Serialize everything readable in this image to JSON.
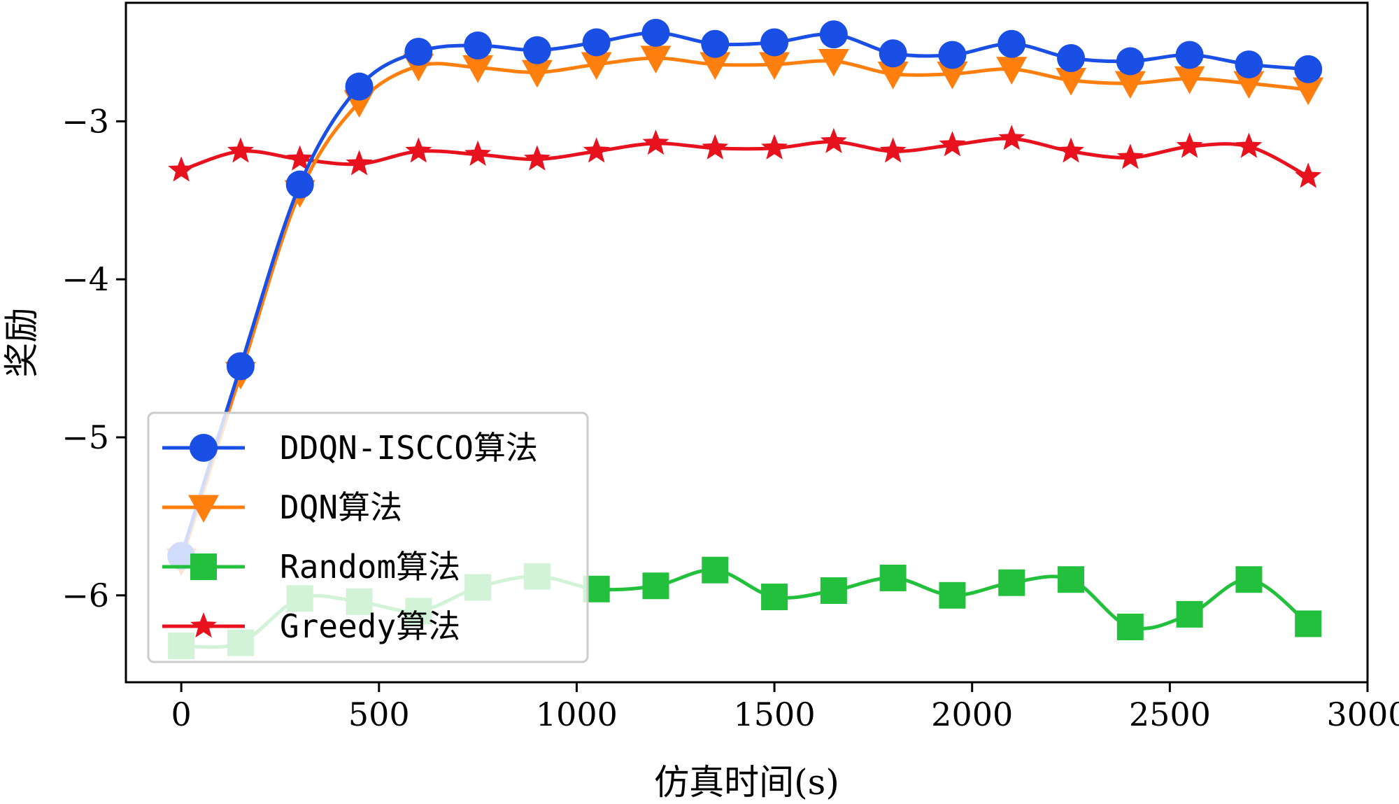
{
  "chart_data": {
    "type": "line",
    "xlabel": "仿真时间(s)",
    "ylabel": "奖励",
    "xlim": [
      -140,
      3000
    ],
    "ylim": [
      -6.55,
      -2.25
    ],
    "xticks": [
      0,
      500,
      1000,
      1500,
      2000,
      2500,
      3000
    ],
    "xtick_labels": [
      "0",
      "500",
      "1000",
      "1500",
      "2000",
      "2500",
      "3000"
    ],
    "yticks": [
      -6,
      -5,
      -4,
      -3
    ],
    "ytick_labels": [
      "−6",
      "−5",
      "−4",
      "−3"
    ],
    "grid": false,
    "legend_position": "lower-left",
    "x": [
      0,
      150,
      300,
      450,
      600,
      750,
      900,
      1050,
      1200,
      1350,
      1500,
      1650,
      1800,
      1950,
      2100,
      2250,
      2400,
      2550,
      2700,
      2850
    ],
    "series": [
      {
        "name": "DDQN-ISCCO算法",
        "color": "#1a4fe6",
        "marker": "circle",
        "values": [
          -5.75,
          -4.55,
          -3.4,
          -2.78,
          -2.56,
          -2.52,
          -2.55,
          -2.5,
          -2.44,
          -2.51,
          -2.5,
          -2.45,
          -2.57,
          -2.58,
          -2.51,
          -2.6,
          -2.62,
          -2.58,
          -2.64,
          -2.67
        ]
      },
      {
        "name": "DQN算法",
        "color": "#ff7f0e",
        "marker": "triangle-down",
        "values": [
          -5.78,
          -4.6,
          -3.45,
          -2.88,
          -2.65,
          -2.66,
          -2.69,
          -2.64,
          -2.6,
          -2.64,
          -2.64,
          -2.62,
          -2.7,
          -2.7,
          -2.67,
          -2.74,
          -2.76,
          -2.73,
          -2.76,
          -2.8
        ]
      },
      {
        "name": "Random算法",
        "color": "#22c03c",
        "marker": "square",
        "values": [
          -6.32,
          -6.3,
          -6.02,
          -6.04,
          -6.1,
          -5.95,
          -5.88,
          -5.96,
          -5.94,
          -5.84,
          -6.01,
          -5.97,
          -5.89,
          -6.0,
          -5.92,
          -5.9,
          -6.2,
          -6.12,
          -5.9,
          -6.18
        ]
      },
      {
        "name": "Greedy算法",
        "color": "#e8121f",
        "marker": "star",
        "values": [
          -3.31,
          -3.19,
          -3.24,
          -3.27,
          -3.19,
          -3.21,
          -3.24,
          -3.19,
          -3.14,
          -3.17,
          -3.17,
          -3.13,
          -3.19,
          -3.15,
          -3.11,
          -3.19,
          -3.23,
          -3.16,
          -3.16,
          -3.35
        ]
      }
    ]
  }
}
